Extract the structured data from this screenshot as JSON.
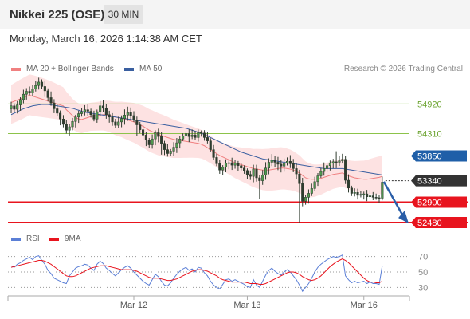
{
  "header": {
    "title": "Nikkei 225 (OSE)",
    "timeframe": "30 MIN"
  },
  "timestamp": "Monday, March 16, 2026 1:14:38 AM CET",
  "legend": {
    "ma20": "MA 20 + Bollinger Bands",
    "ma50": "MA 50",
    "rsi": "RSI",
    "rsi_ma": "9MA"
  },
  "credit": "Research © 2026 Trading Central",
  "colors": {
    "ma20": "#f08080",
    "ma50": "#3a5fa0",
    "band_fill": "#fde2e2",
    "support": "#e8141e",
    "resistance": "#8cc34a",
    "pivot": "#1f5fa8",
    "current": "#333333",
    "candle": "#2f3c2f",
    "rsi": "#5b7fd6",
    "rsi_ma": "#e8141e",
    "arrow": "#2a5ea8"
  },
  "chart_data": [
    {
      "type": "candlestick",
      "price_range": [
        52300,
        55500
      ],
      "levels": [
        {
          "label": "54920",
          "value": 54920,
          "kind": "resistance"
        },
        {
          "label": "54310",
          "value": 54310,
          "kind": "resistance"
        },
        {
          "label": "53850",
          "value": 53850,
          "kind": "pivot"
        },
        {
          "label": "53340",
          "value": 53340,
          "kind": "current"
        },
        {
          "label": "52900",
          "value": 52900,
          "kind": "support"
        },
        {
          "label": "52480",
          "value": 52480,
          "kind": "support"
        }
      ],
      "close": [
        54880,
        54810,
        54900,
        55010,
        55120,
        55180,
        55150,
        55230,
        55300,
        55370,
        55280,
        55190,
        55050,
        54940,
        54820,
        54730,
        54610,
        54500,
        54380,
        54450,
        54560,
        54650,
        54720,
        54760,
        54800,
        54770,
        54700,
        54610,
        54760,
        54880,
        54830,
        54700,
        54650,
        54550,
        54480,
        54550,
        54620,
        54690,
        54740,
        54680,
        54590,
        54490,
        54390,
        54280,
        54180,
        54080,
        54200,
        54330,
        54250,
        54110,
        53980,
        53900,
        53950,
        54030,
        54120,
        54200,
        54260,
        54310,
        54250,
        54280,
        54230,
        54330,
        54320,
        54230,
        54160,
        53980,
        53820,
        53690,
        53560,
        53620,
        53700,
        53710,
        53660,
        53700,
        53650,
        53600,
        53550,
        53470,
        53430,
        53580,
        53400,
        53340,
        53460,
        53600,
        53720,
        53770,
        53720,
        53680,
        53640,
        53700,
        53740,
        53690,
        53590,
        53480,
        53280,
        52920,
        53000,
        53080,
        53180,
        53320,
        53440,
        53530,
        53590,
        53650,
        53700,
        53730,
        53720,
        53750,
        53780,
        53350,
        53190,
        53080,
        53100,
        53040,
        53060,
        53070,
        53010,
        53030,
        53000,
        52990,
        52980,
        53310
      ],
      "ma20": [
        54950,
        54975,
        55000,
        55025,
        55050,
        55075,
        55100,
        55080,
        55060,
        55040,
        55020,
        55000,
        54980,
        54960,
        54940,
        54920,
        54900,
        54880,
        54800,
        54740,
        54680,
        54640,
        54610,
        54600,
        54620,
        54640,
        54660,
        54670,
        54680,
        54690,
        54700,
        54700,
        54690,
        54670,
        54650,
        54640,
        54630,
        54610,
        54590,
        54570,
        54550,
        54520,
        54490,
        54460,
        54420,
        54380,
        54350,
        54320,
        54290,
        54270,
        54250,
        54230,
        54210,
        54190,
        54180,
        54170,
        54160,
        54150,
        54140,
        54130,
        54120,
        54110,
        54090,
        54060,
        54020,
        53980,
        53940,
        53900,
        53860,
        53830,
        53800,
        53770,
        53740,
        53710,
        53690,
        53670,
        53650,
        53630,
        53610,
        53590,
        53580,
        53570,
        53560,
        53560,
        53560,
        53570,
        53580,
        53590,
        53600,
        53600,
        53590,
        53580,
        53560,
        53530,
        53500,
        53450,
        53400,
        53380,
        53370,
        53370,
        53380,
        53390,
        53410,
        53430,
        53450,
        53470,
        53480,
        53490,
        53500,
        53470,
        53440,
        53420,
        53400,
        53390,
        53380,
        53370,
        53370,
        53380,
        53390,
        53400,
        53410,
        53430
      ],
      "ma50": [
        54700,
        54730,
        54760,
        54790,
        54820,
        54840,
        54860,
        54880,
        54890,
        54900,
        54910,
        54910,
        54910,
        54900,
        54890,
        54880,
        54870,
        54860,
        54850,
        54840,
        54830,
        54810,
        54790,
        54770,
        54750,
        54740,
        54730,
        54720,
        54710,
        54700,
        54690,
        54680,
        54670,
        54660,
        54650,
        54640,
        54630,
        54620,
        54610,
        54600,
        54590,
        54580,
        54570,
        54560,
        54550,
        54540,
        54530,
        54520,
        54510,
        54500,
        54490,
        54480,
        54470,
        54460,
        54450,
        54440,
        54430,
        54420,
        54400,
        54380,
        54360,
        54340,
        54320,
        54290,
        54260,
        54230,
        54200,
        54170,
        54140,
        54110,
        54080,
        54050,
        54020,
        53990,
        53960,
        53930,
        53910,
        53890,
        53870,
        53850,
        53830,
        53810,
        53790,
        53780,
        53770,
        53760,
        53750,
        53740,
        53730,
        53720,
        53710,
        53700,
        53690,
        53680,
        53670,
        53660,
        53650,
        53640,
        53630,
        53620,
        53610,
        53600,
        53590,
        53590,
        53590,
        53590,
        53590,
        53590,
        53590,
        53580,
        53570,
        53560,
        53550,
        53540,
        53530,
        53520,
        53510,
        53500,
        53490,
        53480,
        53470,
        53460
      ]
    },
    {
      "type": "line",
      "yticks": [
        "70",
        "50",
        "30"
      ],
      "ylim": [
        20,
        80
      ],
      "series": [
        {
          "name": "RSI",
          "values": [
            58,
            56,
            60,
            62,
            65,
            67,
            69,
            66,
            70,
            71,
            65,
            60,
            52,
            48,
            42,
            40,
            38,
            36,
            35,
            45,
            50,
            55,
            57,
            58,
            60,
            59,
            55,
            52,
            60,
            64,
            61,
            55,
            52,
            48,
            45,
            49,
            53,
            56,
            58,
            55,
            50,
            46,
            42,
            38,
            35,
            33,
            40,
            47,
            44,
            38,
            33,
            32,
            36,
            42,
            47,
            51,
            54,
            56,
            52,
            54,
            50,
            56,
            55,
            49,
            45,
            38,
            33,
            30,
            28,
            34,
            40,
            41,
            38,
            40,
            38,
            36,
            34,
            31,
            30,
            40,
            33,
            30,
            38,
            46,
            52,
            55,
            51,
            48,
            46,
            50,
            53,
            50,
            45,
            40,
            33,
            25,
            30,
            35,
            42,
            50,
            56,
            60,
            63,
            66,
            68,
            70,
            69,
            70,
            72,
            45,
            40,
            36,
            38,
            36,
            37,
            38,
            35,
            37,
            35,
            35,
            34,
            58
          ]
        },
        {
          "name": "9MA",
          "values": [
            56,
            57,
            58,
            59,
            60,
            61,
            62,
            63,
            64,
            65,
            65,
            64,
            62,
            60,
            57,
            54,
            51,
            48,
            45,
            44,
            44,
            45,
            47,
            49,
            51,
            53,
            55,
            56,
            57,
            58,
            58,
            58,
            57,
            56,
            55,
            54,
            53,
            53,
            53,
            53,
            52,
            51,
            49,
            47,
            45,
            43,
            42,
            42,
            42,
            41,
            40,
            39,
            39,
            40,
            41,
            43,
            45,
            47,
            49,
            51,
            52,
            53,
            53,
            52,
            51,
            49,
            47,
            45,
            42,
            40,
            39,
            38,
            37,
            37,
            37,
            37,
            37,
            36,
            35,
            35,
            35,
            34,
            34,
            35,
            37,
            39,
            41,
            43,
            45,
            47,
            49,
            50,
            50,
            49,
            47,
            44,
            42,
            40,
            39,
            40,
            42,
            45,
            49,
            53,
            57,
            60,
            63,
            65,
            67,
            65,
            62,
            58,
            54,
            50,
            46,
            42,
            39,
            37,
            37,
            36,
            36,
            38
          ]
        }
      ]
    }
  ],
  "xaxis": {
    "ticks": [
      "Mar 12",
      "Mar 13",
      "Mar 16"
    ],
    "tick_bars": [
      40,
      77,
      115
    ]
  }
}
